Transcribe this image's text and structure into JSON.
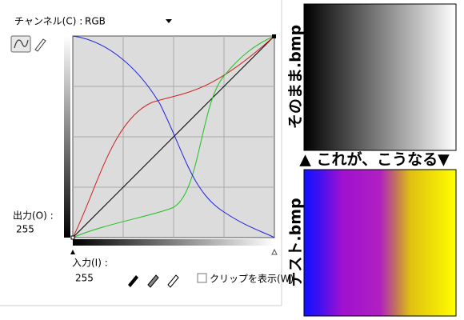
{
  "dialog": {
    "channel_label": "チャンネル(C) :",
    "channel_value": "RGB",
    "output_label": "出力(O) :",
    "output_value": "255",
    "input_label": "入力(I) :",
    "input_value": "255",
    "clip_label": "クリップを表示(W)"
  },
  "images": {
    "original_label": "そのまま.bmp",
    "caption": "▲ これが、こうなる▼",
    "result_label": "テスト.bmp"
  }
}
